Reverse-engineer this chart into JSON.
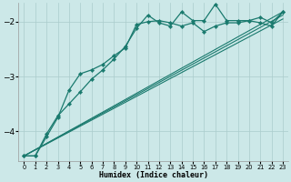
{
  "xlabel": "Humidex (Indice chaleur)",
  "background_color": "#cce8e8",
  "line_color": "#1a7a6e",
  "grid_color": "#aacccc",
  "xlim": [
    -0.5,
    23.5
  ],
  "ylim": [
    -4.55,
    -1.65
  ],
  "yticks": [
    -4,
    -3,
    -2
  ],
  "xticks": [
    0,
    1,
    2,
    3,
    4,
    5,
    6,
    7,
    8,
    9,
    10,
    11,
    12,
    13,
    14,
    15,
    16,
    17,
    18,
    19,
    20,
    21,
    22,
    23
  ],
  "series_marked_1": {
    "x": [
      0,
      1,
      2,
      3,
      4,
      5,
      6,
      7,
      8,
      9,
      10,
      11,
      12,
      13,
      14,
      15,
      16,
      17,
      18,
      19,
      20,
      21,
      22,
      23
    ],
    "y": [
      -4.45,
      -4.45,
      -4.1,
      -3.75,
      -3.25,
      -2.95,
      -2.88,
      -2.78,
      -2.62,
      -2.48,
      -2.05,
      -2.0,
      -1.98,
      -2.02,
      -2.08,
      -2.02,
      -2.18,
      -2.08,
      -2.02,
      -2.02,
      -1.98,
      -2.02,
      -2.08,
      -1.82
    ]
  },
  "series_marked_2": {
    "x": [
      0,
      1,
      2,
      3,
      4,
      5,
      6,
      7,
      8,
      9,
      10,
      11,
      12,
      13,
      14,
      15,
      16,
      17,
      18,
      19,
      20,
      21,
      22,
      23
    ],
    "y": [
      -4.45,
      -4.45,
      -4.05,
      -3.72,
      -3.5,
      -3.28,
      -3.05,
      -2.88,
      -2.68,
      -2.45,
      -2.12,
      -1.88,
      -2.02,
      -2.08,
      -1.82,
      -1.98,
      -1.98,
      -1.68,
      -1.98,
      -1.98,
      -1.98,
      -1.92,
      -2.02,
      -1.82
    ]
  },
  "straight_lines": [
    {
      "x0": 0,
      "y0": -4.45,
      "x1": 23,
      "y1": -1.82
    },
    {
      "x0": 0,
      "y0": -4.45,
      "x1": 23,
      "y1": -1.88
    },
    {
      "x0": 0,
      "y0": -4.45,
      "x1": 23,
      "y1": -1.95
    }
  ]
}
